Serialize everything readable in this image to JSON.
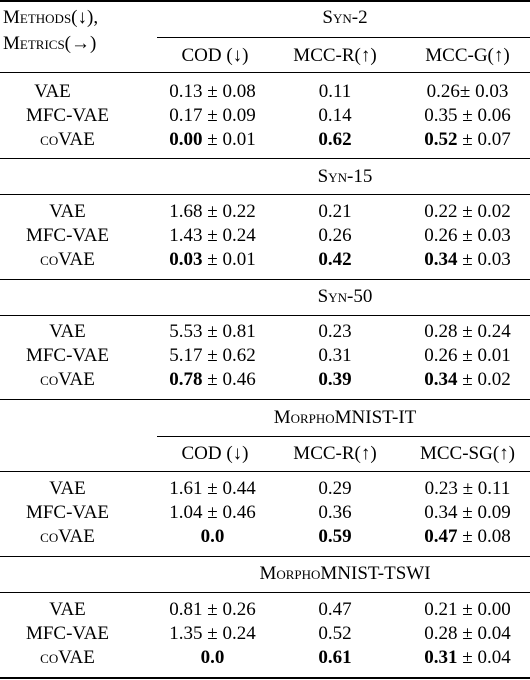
{
  "header": {
    "methods_label": "Methods(↓),",
    "metrics_label": "Metrics(→)",
    "col_cod": "COD (↓)",
    "col_mccr": "MCC-R(↑)",
    "col_mccg": "MCC-G(↑)",
    "col_mccsg": "MCC-SG(↑)"
  },
  "sections": [
    {
      "title": "Syn-2",
      "rows": [
        {
          "method": "VAE",
          "cod_val": "0.13",
          "cod_pm": " ± 0.08",
          "mccr": "0.11",
          "mccg_val": "0.26",
          "mccg_pm": "± 0.03"
        },
        {
          "method": "MFC-VAE",
          "cod_val": "0.17",
          "cod_pm": " ± 0.09",
          "mccr": "0.14",
          "mccg_val": "0.35",
          "mccg_pm": " ± 0.06"
        },
        {
          "method": "coVAE",
          "cod_val": "0.00",
          "cod_pm": " ± 0.01",
          "mccr": "0.62",
          "mccg_val": "0.52",
          "mccg_pm": " ± 0.07"
        }
      ]
    },
    {
      "title": "Syn-15",
      "rows": [
        {
          "method": "VAE",
          "cod_val": "1.68",
          "cod_pm": " ± 0.22",
          "mccr": "0.21",
          "mccg_val": "0.22",
          "mccg_pm": " ± 0.02"
        },
        {
          "method": "MFC-VAE",
          "cod_val": "1.43",
          "cod_pm": " ± 0.24",
          "mccr": "0.26",
          "mccg_val": "0.26",
          "mccg_pm": " ± 0.03"
        },
        {
          "method": "coVAE",
          "cod_val": "0.03",
          "cod_pm": " ± 0.01",
          "mccr": "0.42",
          "mccg_val": "0.34",
          "mccg_pm": " ± 0.03"
        }
      ]
    },
    {
      "title": "Syn-50",
      "rows": [
        {
          "method": "VAE",
          "cod_val": "5.53",
          "cod_pm": " ± 0.81",
          "mccr": "0.23",
          "mccg_val": "0.28",
          "mccg_pm": " ± 0.24"
        },
        {
          "method": "MFC-VAE",
          "cod_val": "5.17",
          "cod_pm": " ± 0.62",
          "mccr": "0.31",
          "mccg_val": "0.26",
          "mccg_pm": " ± 0.01"
        },
        {
          "method": "coVAE",
          "cod_val": "0.78",
          "cod_pm": " ± 0.46",
          "mccr": "0.39",
          "mccg_val": "0.34",
          "mccg_pm": " ± 0.02"
        }
      ]
    },
    {
      "title_sc": "Morpho",
      "title_rest": "MNIST-IT",
      "rows": [
        {
          "method": "VAE",
          "cod_val": "1.61",
          "cod_pm": " ± 0.44",
          "mccr": "0.29",
          "mccg_val": "0.23",
          "mccg_pm": " ± 0.11"
        },
        {
          "method": "MFC-VAE",
          "cod_val": "1.04",
          "cod_pm": " ± 0.46",
          "mccr": "0.36",
          "mccg_val": "0.34",
          "mccg_pm": " ± 0.09"
        },
        {
          "method": "coVAE",
          "cod_val": "0.0",
          "cod_pm": "",
          "mccr": "0.59",
          "mccg_val": "0.47",
          "mccg_pm": " ± 0.08"
        }
      ]
    },
    {
      "title_sc": "Morpho",
      "title_rest": "MNIST-TSWI",
      "rows": [
        {
          "method": "VAE",
          "cod_val": "0.81",
          "cod_pm": " ± 0.26",
          "mccr": "0.47",
          "mccg_val": "0.21",
          "mccg_pm": " ± 0.00"
        },
        {
          "method": "MFC-VAE",
          "cod_val": "1.35",
          "cod_pm": " ± 0.24",
          "mccr": "0.52",
          "mccg_val": "0.28",
          "mccg_pm": " ± 0.04"
        },
        {
          "method": "coVAE",
          "cod_val": "0.0",
          "cod_pm": "",
          "mccr": "0.61",
          "mccg_val": "0.31",
          "mccg_pm": " ± 0.04"
        }
      ]
    }
  ],
  "bold_cells": [
    "coVAE"
  ]
}
